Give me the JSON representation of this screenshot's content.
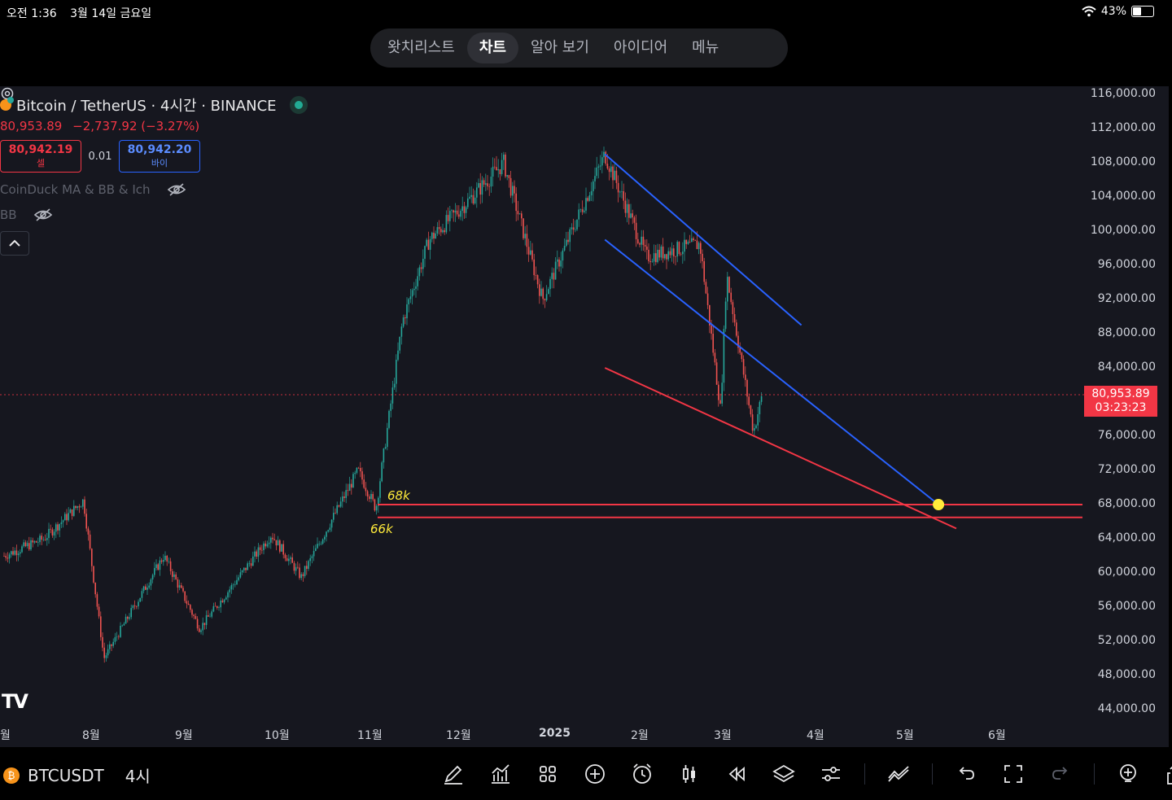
{
  "status_bar": {
    "time": "오전 1:36",
    "date": "3월 14일 금요일",
    "battery": "43%"
  },
  "nav_tabs": [
    {
      "label": "왓치리스트",
      "active": false
    },
    {
      "label": "차트",
      "active": true
    },
    {
      "label": "알아 보기",
      "active": false
    },
    {
      "label": "아이디어",
      "active": false
    },
    {
      "label": "메뉴",
      "active": false
    }
  ],
  "legend": {
    "symbol_title": "Bitcoin / TetherUS · 4시간 · BINANCE",
    "last_price": "80,953.89",
    "change": "−2,737.92 (−3.27%)",
    "sell_price": "80,942.19",
    "sell_label": "셀",
    "spread": "0.01",
    "buy_price": "80,942.20",
    "buy_label": "바이",
    "indicator_1": "CoinDuck MA & BB & Ich",
    "indicator_2": "BB"
  },
  "price_axis": [
    "116,000.00",
    "112,000.00",
    "108,000.00",
    "104,000.00",
    "100,000.00",
    "96,000.00",
    "92,000.00",
    "88,000.00",
    "84,000.00",
    "80,000.00",
    "76,000.00",
    "72,000.00",
    "68,000.00",
    "64,000.00",
    "60,000.00",
    "56,000.00",
    "52,000.00",
    "48,000.00",
    "44,000.00"
  ],
  "current_price_tag": {
    "price": "80,953.89",
    "countdown": "03:23:23"
  },
  "time_axis": [
    "월",
    "8월",
    "9월",
    "10월",
    "11월",
    "12월",
    "2025",
    "2월",
    "3월",
    "4월",
    "5월",
    "6월"
  ],
  "annotations": {
    "label_68k": "68k",
    "label_66k": "66k"
  },
  "colors": {
    "background": "#16171f",
    "up": "#26a69a",
    "down": "#ef5350",
    "channel": "#2962ff",
    "support": "#f23645",
    "marker": "#ffeb3b"
  },
  "chart_data": {
    "type": "candlestick",
    "title": "Bitcoin / TetherUS · 4시간 · BINANCE",
    "ylim": [
      44000,
      116000
    ],
    "x_ticks": [
      "월",
      "8월",
      "9월",
      "10월",
      "11월",
      "12월",
      "2025",
      "2월",
      "3월",
      "4월",
      "5월",
      "6월"
    ],
    "price_path": [
      {
        "x": "2024-07-01",
        "y": 62000
      },
      {
        "x": "2024-07-15",
        "y": 64000
      },
      {
        "x": "2024-07-29",
        "y": 68500
      },
      {
        "x": "2024-08-05",
        "y": 50000
      },
      {
        "x": "2024-08-25",
        "y": 62000
      },
      {
        "x": "2024-09-06",
        "y": 53500
      },
      {
        "x": "2024-09-30",
        "y": 64500
      },
      {
        "x": "2024-10-10",
        "y": 59500
      },
      {
        "x": "2024-10-29",
        "y": 72000
      },
      {
        "x": "2024-11-04",
        "y": 67500
      },
      {
        "x": "2024-11-13",
        "y": 89500
      },
      {
        "x": "2024-11-22",
        "y": 99000
      },
      {
        "x": "2024-12-05",
        "y": 103500
      },
      {
        "x": "2024-12-17",
        "y": 108000
      },
      {
        "x": "2024-12-30",
        "y": 92000
      },
      {
        "x": "2025-01-20",
        "y": 109000
      },
      {
        "x": "2025-02-03",
        "y": 97000
      },
      {
        "x": "2025-02-21",
        "y": 98500
      },
      {
        "x": "2025-02-28",
        "y": 79000
      },
      {
        "x": "2025-03-02",
        "y": 95000
      },
      {
        "x": "2025-03-11",
        "y": 76500
      },
      {
        "x": "2025-03-14",
        "y": 80953.89
      }
    ],
    "drawings": [
      {
        "type": "trendline",
        "color": "#2962ff",
        "from": {
          "x": "2025-01-20",
          "y": 109000
        },
        "to": {
          "x": "2025-03-27",
          "y": 89000
        }
      },
      {
        "type": "trendline",
        "color": "#2962ff",
        "from": {
          "x": "2025-01-20",
          "y": 99000
        },
        "to": {
          "x": "2025-05-12",
          "y": 68000
        }
      },
      {
        "type": "trendline",
        "color": "#f23645",
        "from": {
          "x": "2025-01-20",
          "y": 84000
        },
        "to": {
          "x": "2025-05-18",
          "y": 65200
        }
      },
      {
        "type": "horizontal",
        "color": "#f23645",
        "y": 68000,
        "label": "68k"
      },
      {
        "type": "horizontal",
        "color": "#f23645",
        "y": 66500,
        "label": "66k"
      },
      {
        "type": "marker",
        "color": "#ffeb3b",
        "x": "2025-05-12",
        "y": 68000
      }
    ]
  }
}
